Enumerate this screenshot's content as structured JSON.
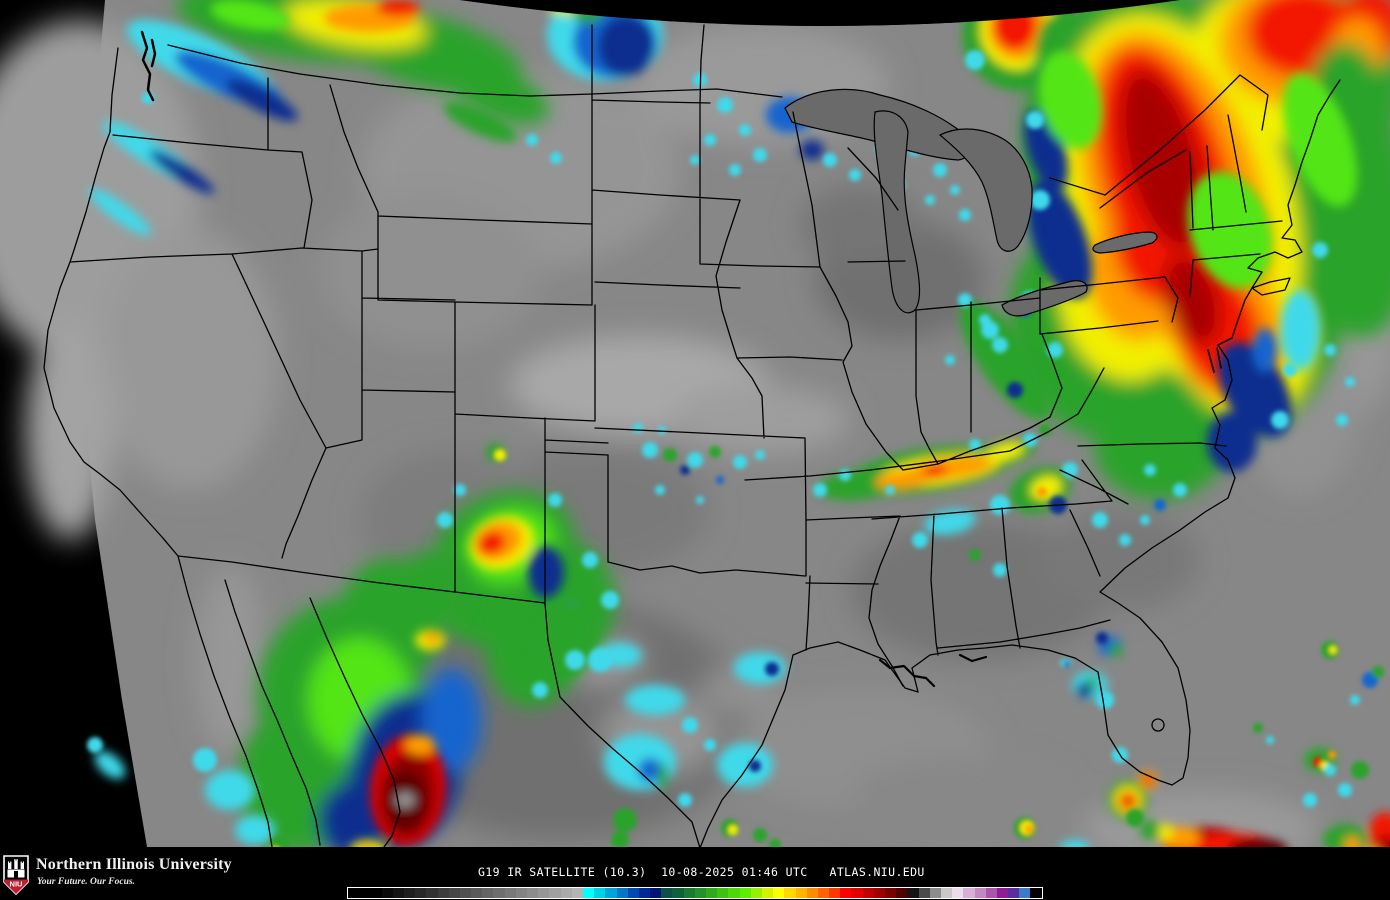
{
  "footer": {
    "logo": {
      "text": "NIU",
      "shield_red": "#ba1f33"
    },
    "university_name": "Northern Illinois University",
    "tagline": "Your Future. Our Focus.",
    "caption": "G19 IR SATELLITE (10.3)  10-08-2025 01:46 UTC   ATLAS.NIU.EDU"
  },
  "colorbar": {
    "colors": [
      "#000000",
      "#000000",
      "#000000",
      "#0a0a0a",
      "#141414",
      "#1e1e1e",
      "#282828",
      "#323232",
      "#3c3c3c",
      "#464646",
      "#505050",
      "#5a5a5a",
      "#646464",
      "#6e6e6e",
      "#787878",
      "#828282",
      "#8c8c8c",
      "#969696",
      "#a0a0a0",
      "#aaaaaa",
      "#b4b4b4",
      "#00ffff",
      "#00d2e6",
      "#00a4d8",
      "#0076c8",
      "#0048b4",
      "#002896",
      "#001478",
      "#0f4f4a",
      "#11603c",
      "#1b7a32",
      "#269128",
      "#31a81e",
      "#3fc113",
      "#4dd80a",
      "#5bee00",
      "#96f000",
      "#d2f200",
      "#ffff00",
      "#ffd800",
      "#ffb400",
      "#ff8c00",
      "#ff6400",
      "#ff3700",
      "#ff0000",
      "#e00000",
      "#c00000",
      "#9c0000",
      "#780000",
      "#500000",
      "#141414",
      "#4b4b4b",
      "#8c8c8c",
      "#c8c8c8",
      "#ecdcec",
      "#d8aed8",
      "#c487c4",
      "#a855aa",
      "#8c1e96",
      "#5a2da0",
      "#3b7cc8",
      "#000000"
    ]
  }
}
